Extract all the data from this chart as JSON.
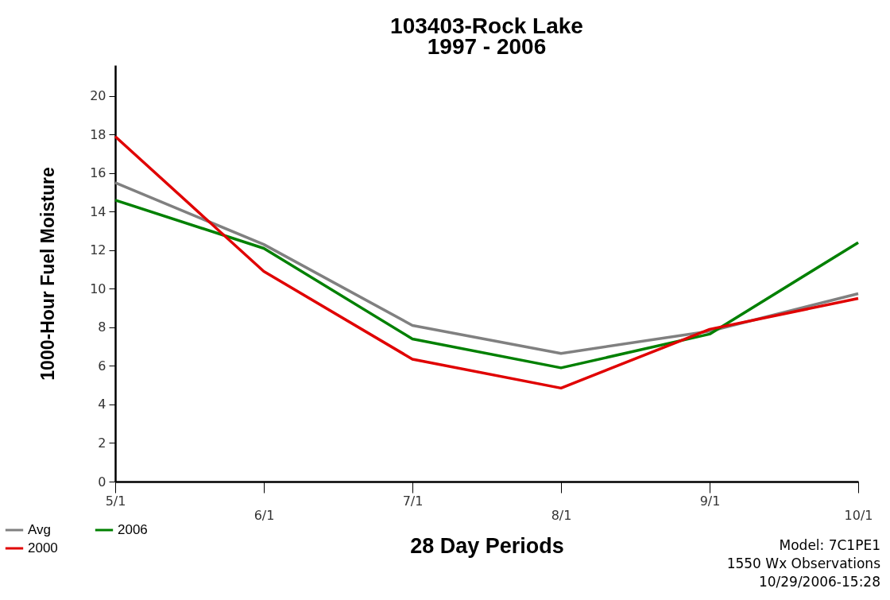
{
  "chart_data": {
    "type": "line",
    "title": "103403-Rock Lake",
    "subtitle": "1997 - 2006",
    "xlabel": "28 Day Periods",
    "ylabel": "1000-Hour Fuel Moisture",
    "categories": [
      "5/1",
      "6/1",
      "7/1",
      "8/1",
      "9/1",
      "10/1"
    ],
    "series": [
      {
        "name": "Avg",
        "color": "#808080",
        "values": [
          15.5,
          12.3,
          8.1,
          6.65,
          7.8,
          9.75
        ]
      },
      {
        "name": "2006",
        "color": "#008000",
        "values": [
          14.6,
          12.1,
          7.4,
          5.9,
          7.65,
          12.4
        ]
      },
      {
        "name": "2000",
        "color": "#e00000",
        "values": [
          17.9,
          10.9,
          6.35,
          4.85,
          7.9,
          9.5
        ]
      }
    ],
    "ylim": [
      0,
      21.6
    ],
    "yticks": [
      0,
      2,
      4,
      6,
      8,
      10,
      12,
      14,
      16,
      18,
      20
    ],
    "grid": false,
    "legend": "bottom left",
    "marker": "none",
    "line_style": "solid",
    "annotations": [
      "Model: 7C1PE1",
      "1550 Wx Observations",
      "10/29/2006-15:28"
    ]
  }
}
